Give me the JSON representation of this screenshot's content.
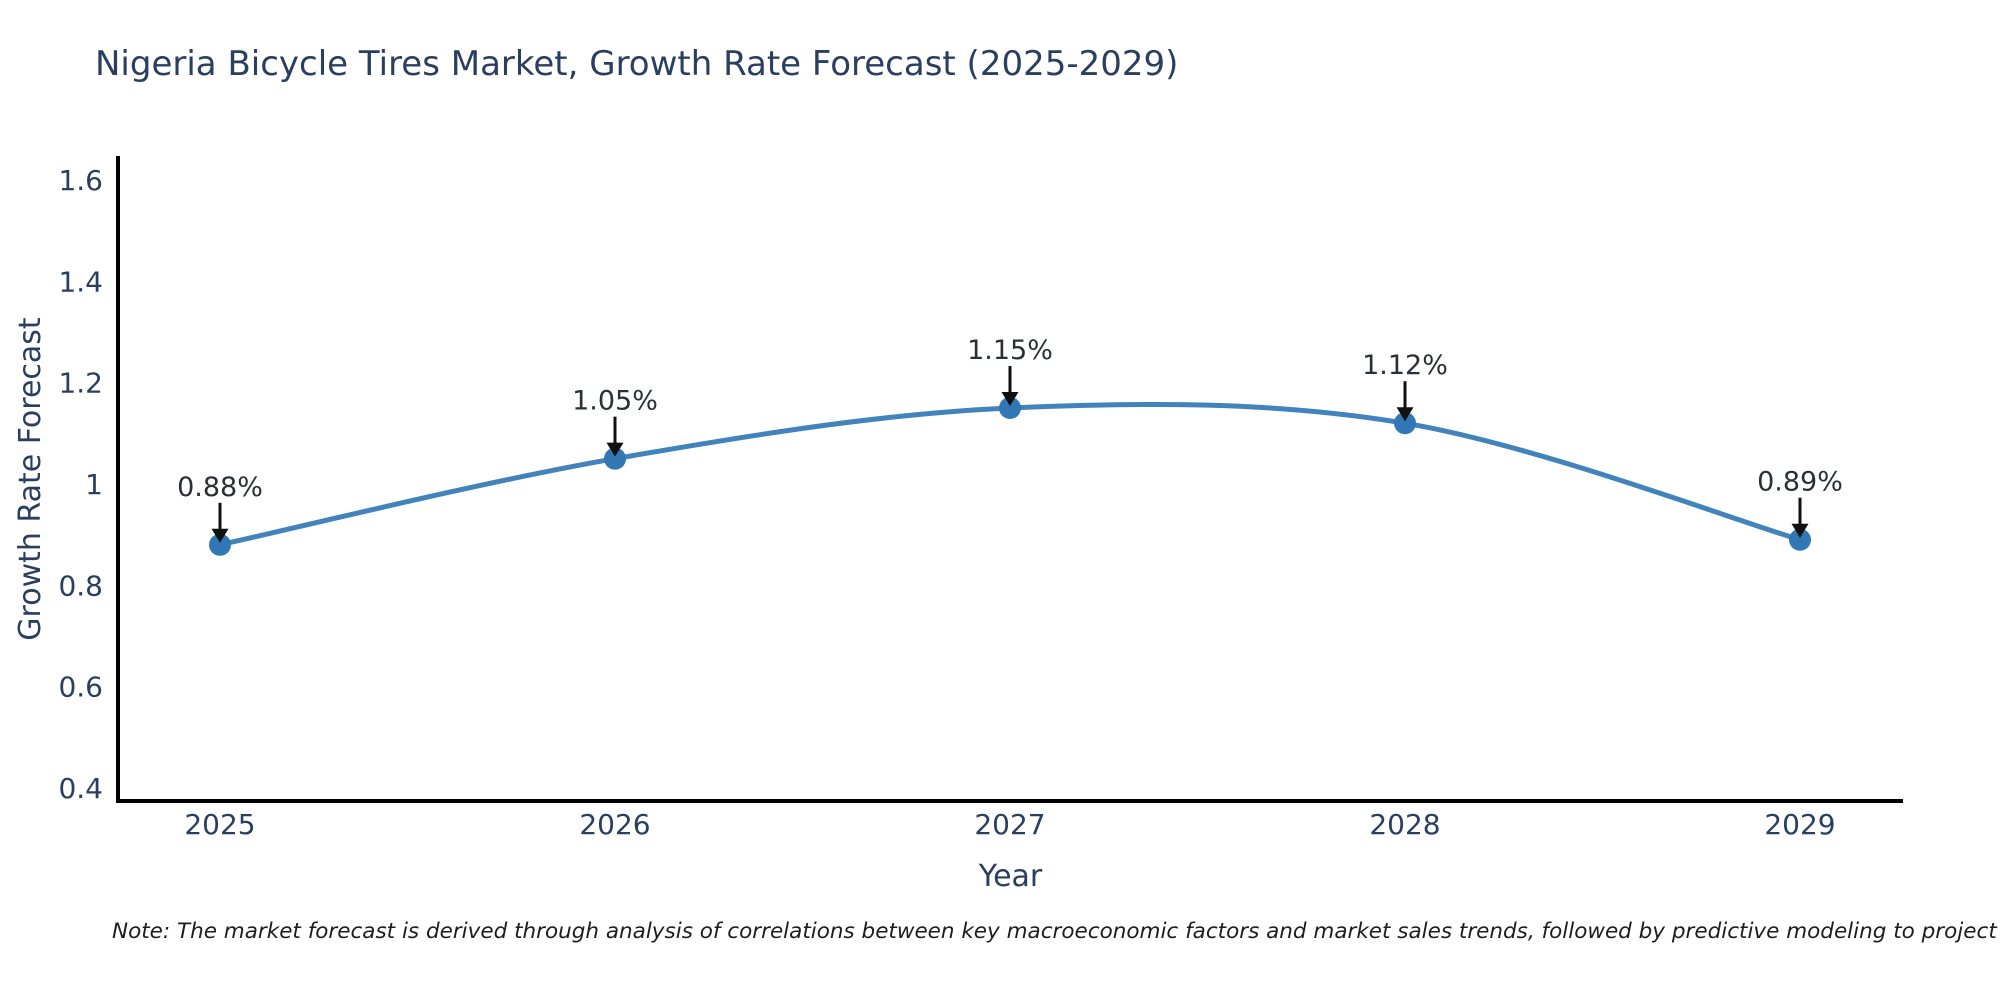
{
  "colors": {
    "line": "#4183ba",
    "marker": "#3077b4",
    "axis": "#000000",
    "text": "#2a3f5f",
    "annotation_text": "#2b2f36",
    "arrow": "#111111",
    "note_text": "#1d1d1d",
    "background": "#ffffff"
  },
  "note": "Note: The market forecast is derived through analysis of correlations between key macroeconomic factors and market sales trends, followed by predictive modeling to project future sales",
  "chart_data": {
    "type": "line",
    "title": "Nigeria Bicycle Tires Market, Growth Rate Forecast (2025-2029)",
    "x": [
      "2025",
      "2026",
      "2027",
      "2028",
      "2029"
    ],
    "series": [
      {
        "name": "Growth Rate Forecast",
        "values": [
          0.88,
          1.05,
          1.15,
          1.12,
          0.89
        ]
      }
    ],
    "point_labels": [
      "0.88%",
      "1.05%",
      "1.15%",
      "1.12%",
      "0.89%"
    ],
    "xlabel": "Year",
    "ylabel": "Growth Rate Forecast",
    "ylim": [
      0.4,
      1.6
    ],
    "yticks": [
      "0.4",
      "0.6",
      "0.8",
      "1",
      "1.2",
      "1.4",
      "1.6"
    ],
    "line_shape": "spline",
    "grid": false,
    "legend_position": "none",
    "markers": true
  }
}
